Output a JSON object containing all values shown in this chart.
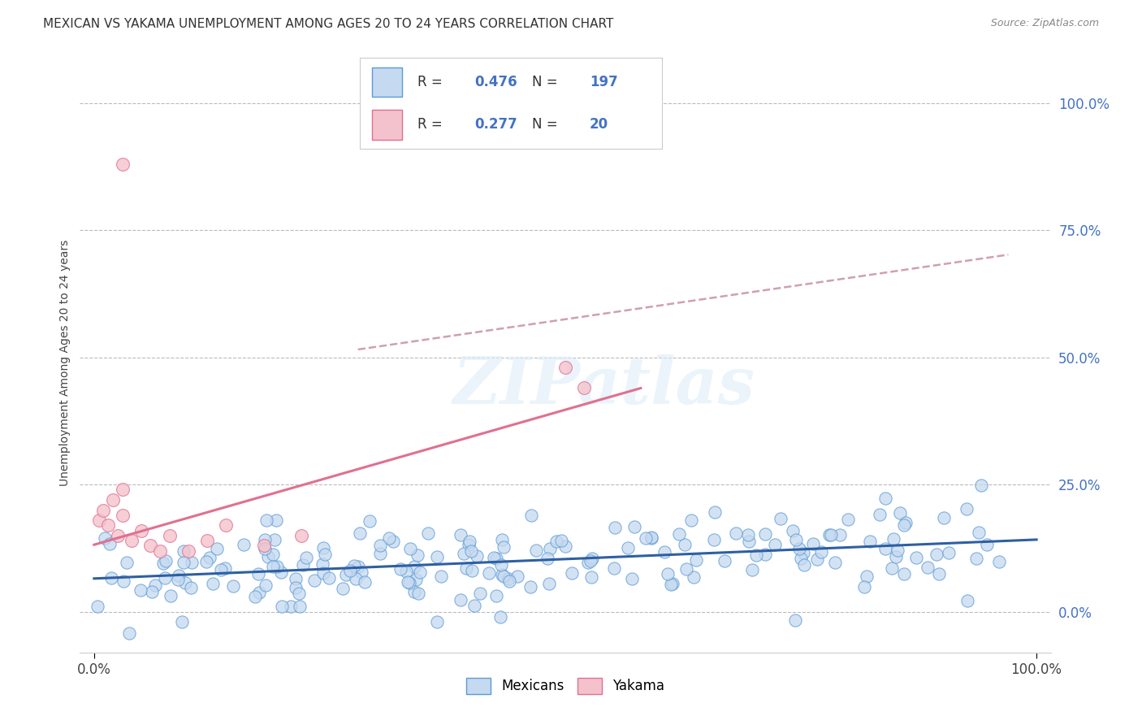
{
  "title": "MEXICAN VS YAKAMA UNEMPLOYMENT AMONG AGES 20 TO 24 YEARS CORRELATION CHART",
  "source": "Source: ZipAtlas.com",
  "ylabel": "Unemployment Among Ages 20 to 24 years",
  "xlabel": "",
  "xtick_labels": [
    "0.0%",
    "100.0%"
  ],
  "ytick_labels": [
    "100.0%",
    "75.0%",
    "50.0%",
    "25.0%",
    "0.0%"
  ],
  "ytick_positions": [
    1.0,
    0.75,
    0.5,
    0.25,
    0.0
  ],
  "background_color": "#ffffff",
  "watermark_text": "ZIPatlas",
  "R_mexican": 0.476,
  "N_mexican": 197,
  "R_yakama": 0.277,
  "N_yakama": 20,
  "blue_color": "#4472c4",
  "pink_color": "#e07090",
  "dot_blue_face": "#c5d9f0",
  "dot_blue_edge": "#5b9bd5",
  "dot_pink_face": "#f4c2cc",
  "dot_pink_edge": "#e07090",
  "trend_blue_color": "#2e5fa3",
  "trend_pink_color": "#e07090",
  "trend_dashed_color": "#d0a0b0",
  "label_color": "#4472c4",
  "title_color": "#333333",
  "source_color": "#888888"
}
